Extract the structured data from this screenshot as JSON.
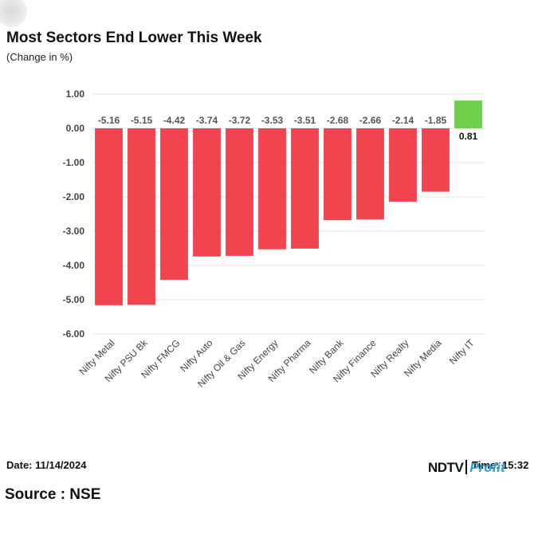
{
  "header": {
    "title": "Most Sectors End Lower This Week",
    "subtitle": "(Change in %)"
  },
  "footer": {
    "date": "Date: 11/14/2024",
    "time": "Time: 15:32",
    "source": "Source : NSE",
    "brand_main": "NDTV",
    "brand_sub": "Profit"
  },
  "colors": {
    "negative": "#f2444f",
    "positive": "#6fcf4a",
    "grid": "#e6e6e6"
  },
  "chart_data": {
    "type": "bar",
    "title": "Most Sectors End Lower This Week",
    "ylabel": "(Change in %)",
    "xlabel": "",
    "ylim": [
      -6,
      1
    ],
    "yticks": [
      "1.00",
      "0.00",
      "-1.00",
      "-2.00",
      "-3.00",
      "-4.00",
      "-5.00",
      "-6.00"
    ],
    "ytick_values": [
      1,
      0,
      -1,
      -2,
      -3,
      -4,
      -5,
      -6
    ],
    "grid": true,
    "categories": [
      "Nifty Metal",
      "Nifty PSU Bk",
      "Nifty FMCG",
      "Nifty Auto",
      "Nifty Oil & Gas",
      "Nifty Energy",
      "Nifty Pharma",
      "Nifty Bank",
      "Nifty Finance",
      "Nifty Realty",
      "Nifty Media",
      "Nifty IT"
    ],
    "values": [
      -5.16,
      -5.15,
      -4.42,
      -3.74,
      -3.72,
      -3.53,
      -3.51,
      -2.68,
      -2.66,
      -2.14,
      -1.85,
      0.81
    ],
    "value_labels": [
      "-5.16",
      "-5.15",
      "-4.42",
      "-3.74",
      "-3.72",
      "-3.53",
      "-3.51",
      "-2.68",
      "-2.66",
      "-2.14",
      "-1.85",
      "0.81"
    ]
  }
}
